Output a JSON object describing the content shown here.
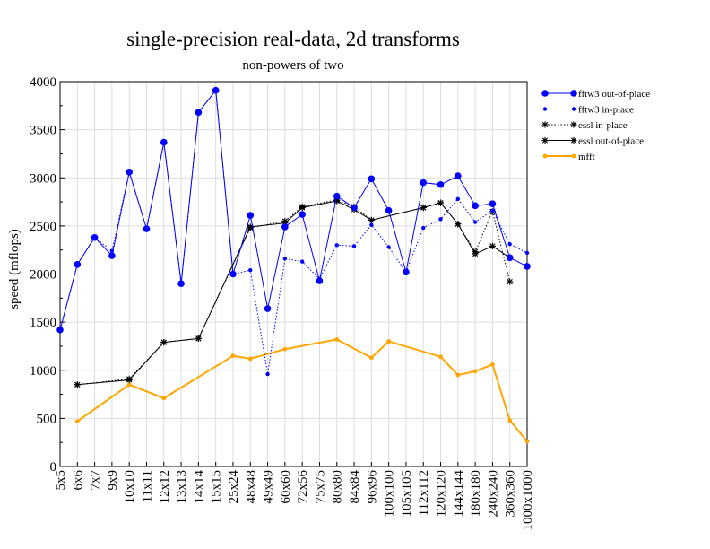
{
  "chart_data": {
    "type": "line",
    "title": "single-precision real-data, 2d transforms",
    "subtitle": "non-powers of two",
    "ylabel": "speed (mflops)",
    "xlabel": "",
    "ylim": [
      0,
      4000
    ],
    "yticks": [
      0,
      500,
      1000,
      1500,
      2000,
      2500,
      3000,
      3500,
      4000
    ],
    "grid": true,
    "legend_position": "right",
    "categories": [
      "5x5",
      "6x6",
      "7x7",
      "9x9",
      "10x10",
      "11x11",
      "12x12",
      "13x13",
      "14x14",
      "15x15",
      "25x24",
      "48x48",
      "49x49",
      "60x60",
      "72x56",
      "75x75",
      "80x80",
      "84x84",
      "96x96",
      "100x100",
      "105x105",
      "112x112",
      "120x120",
      "144x144",
      "180x180",
      "240x240",
      "360x360",
      "1000x1000"
    ],
    "series": [
      {
        "name": "fftw3 out-of-place",
        "color": "#0000ff",
        "style": "solid",
        "marker": "circle-large",
        "values": [
          1420,
          2100,
          2380,
          2190,
          3060,
          2470,
          3370,
          1900,
          3680,
          3910,
          2000,
          2610,
          1640,
          2490,
          2620,
          1930,
          2810,
          2690,
          2990,
          2660,
          2020,
          2950,
          2930,
          3020,
          2710,
          2730,
          2170,
          2080
        ]
      },
      {
        "name": "fftw3 in-place",
        "color": "#0000ff",
        "style": "dotted",
        "marker": "circle-small",
        "values": [
          1420,
          2100,
          2380,
          2240,
          3060,
          2470,
          3370,
          1900,
          3680,
          3910,
          2000,
          2040,
          960,
          2160,
          2130,
          1950,
          2300,
          2290,
          2510,
          2280,
          2020,
          2480,
          2570,
          2780,
          2540,
          2660,
          2310,
          2220
        ]
      },
      {
        "name": "essl in-place",
        "color": "#000000",
        "style": "dotted",
        "marker": "star",
        "values": [
          null,
          850,
          null,
          null,
          910,
          null,
          1290,
          null,
          1330,
          null,
          null,
          2480,
          null,
          2550,
          2700,
          null,
          2770,
          2700,
          2560,
          null,
          null,
          2690,
          2740,
          2520,
          2230,
          2650,
          1920,
          null
        ]
      },
      {
        "name": "essl out-of-place",
        "color": "#000000",
        "style": "solid",
        "marker": "star",
        "values": [
          null,
          850,
          null,
          null,
          900,
          null,
          1290,
          null,
          1330,
          null,
          null,
          2490,
          null,
          2530,
          2690,
          null,
          2760,
          2670,
          2560,
          null,
          null,
          2690,
          2740,
          2520,
          2210,
          2290,
          2170,
          null
        ]
      },
      {
        "name": "mfft",
        "color": "#ffa500",
        "style": "solid",
        "marker": "dot",
        "values": [
          null,
          470,
          null,
          null,
          850,
          null,
          710,
          null,
          null,
          null,
          1150,
          1120,
          null,
          1220,
          null,
          null,
          1320,
          null,
          1130,
          1300,
          null,
          null,
          1140,
          950,
          990,
          1060,
          480,
          260
        ]
      }
    ]
  }
}
